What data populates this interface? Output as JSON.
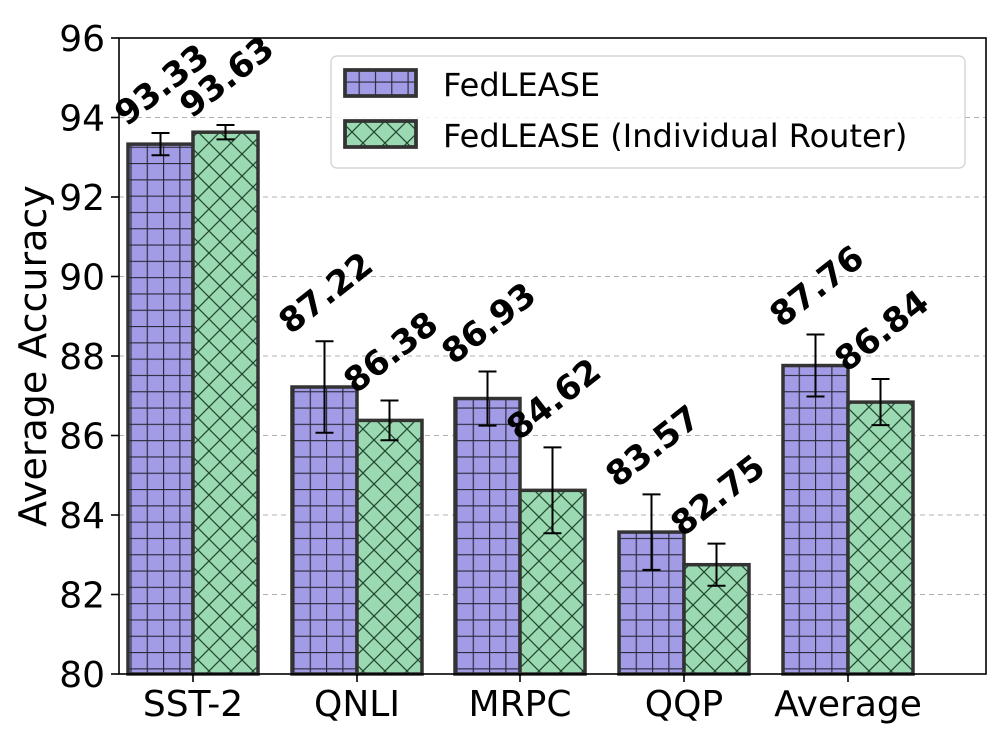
{
  "chart_data": {
    "type": "bar",
    "title": "",
    "xlabel": "",
    "ylabel": "Average Accuracy",
    "ylim": [
      80,
      96
    ],
    "yticks": [
      80,
      82,
      84,
      86,
      88,
      90,
      92,
      94,
      96
    ],
    "grid": "y-dashed",
    "legend_position": "top-right",
    "categories": [
      "SST-2",
      "QNLI",
      "MRPC",
      "QQP",
      "Average"
    ],
    "series": [
      {
        "name": "FedLEASE",
        "color": "#a29be5",
        "hatch": "grid",
        "values": [
          93.33,
          87.22,
          86.93,
          83.57,
          87.76
        ],
        "value_labels": [
          "93.33",
          "87.22",
          "86.93",
          "83.57",
          "87.76"
        ],
        "errors": [
          0.28,
          1.15,
          0.68,
          0.95,
          0.78
        ]
      },
      {
        "name": "FedLEASE (Individual Router)",
        "color": "#9ad9b1",
        "hatch": "cross-diagonal",
        "values": [
          93.63,
          86.38,
          84.62,
          82.75,
          86.84
        ],
        "value_labels": [
          "93.63",
          "86.38",
          "84.62",
          "82.75",
          "86.84"
        ],
        "errors": [
          0.18,
          0.5,
          1.08,
          0.53,
          0.58
        ]
      }
    ]
  }
}
